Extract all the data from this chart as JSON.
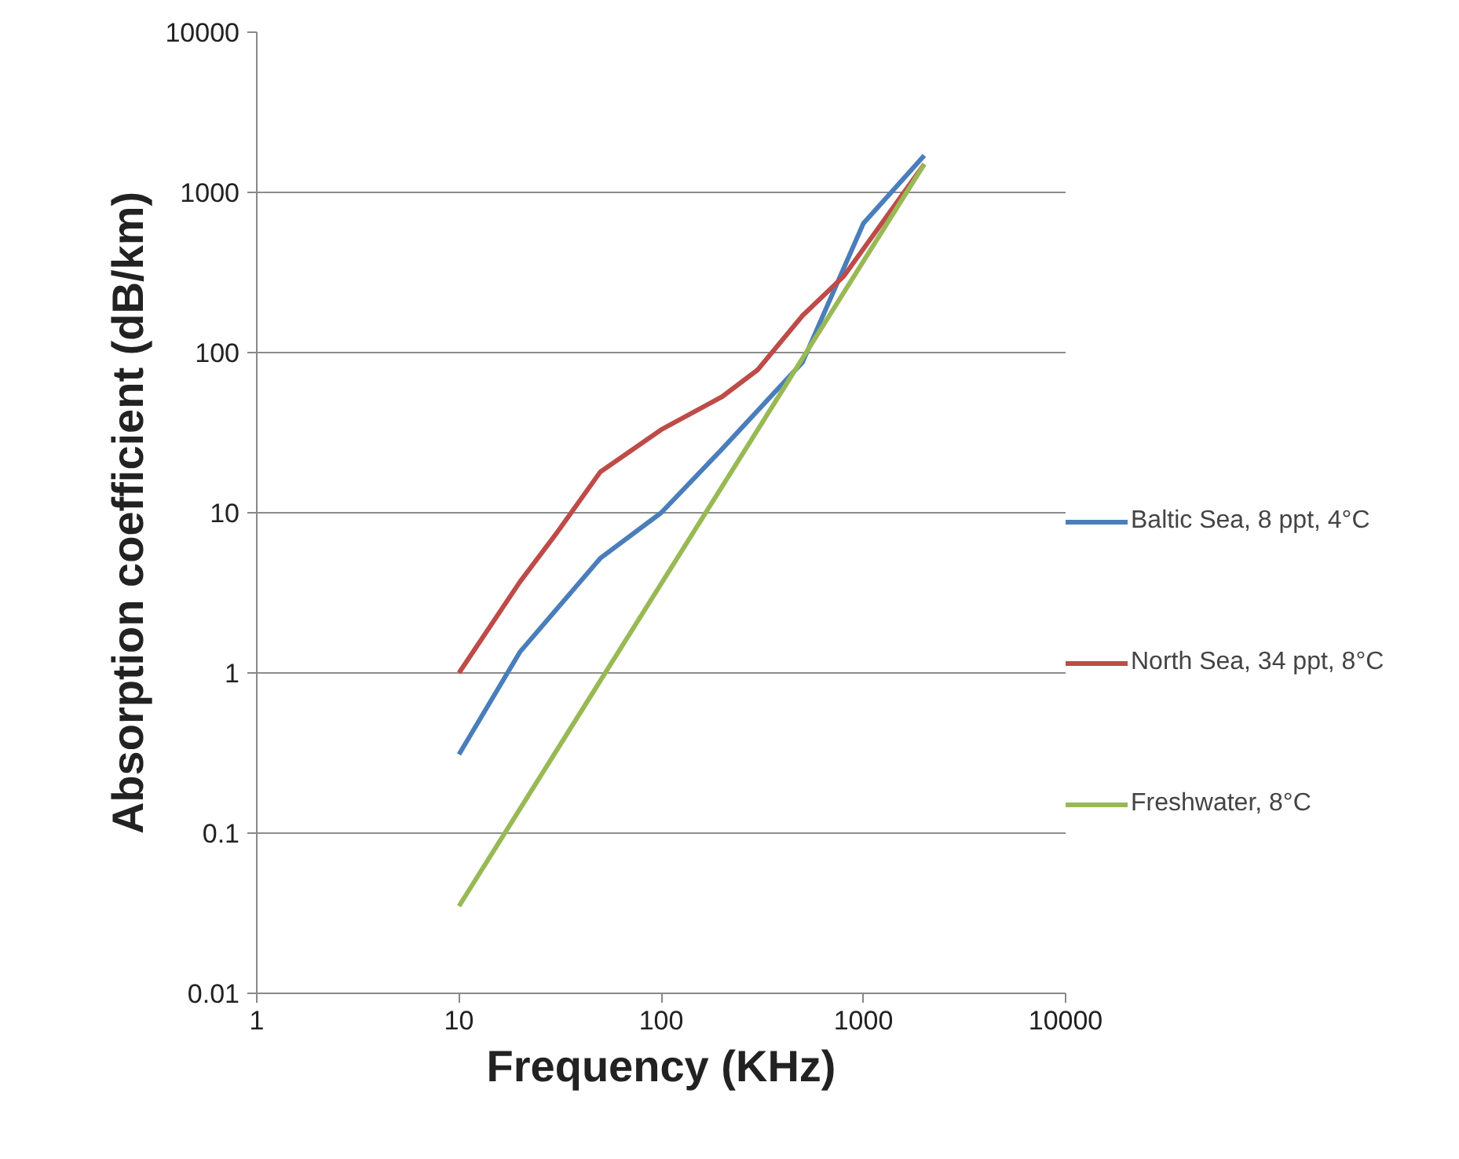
{
  "chart_data": {
    "type": "line",
    "xlabel": "Frequency (KHz)",
    "ylabel": "Absorption coefficient (dB/km)",
    "log": "xy",
    "xlim": [
      1,
      10000
    ],
    "ylim": [
      0.01,
      10000
    ],
    "xticks": [
      1,
      10,
      100,
      1000,
      10000
    ],
    "yticks": [
      0.01,
      0.1,
      1,
      10,
      100,
      1000,
      10000
    ],
    "grid": "y",
    "legend": "right",
    "line_style": "solid",
    "marker": "none",
    "series": [
      {
        "name": "Baltic Sea, 8 ppt, 4°C",
        "color": "#4a7ebb",
        "x": [
          10,
          20,
          50,
          100,
          200,
          500,
          1000,
          2000
        ],
        "values": [
          0.31,
          1.35,
          5.2,
          10,
          25,
          87,
          640,
          1700
        ]
      },
      {
        "name": "North Sea, 34 ppt, 8°C",
        "color": "#be4b48",
        "x": [
          10,
          20,
          30,
          50,
          100,
          200,
          300,
          500,
          800,
          2000
        ],
        "values": [
          1,
          3.7,
          7.3,
          18,
          33,
          53,
          78,
          170,
          300,
          1500
        ]
      },
      {
        "name": "Freshwater, 8°C",
        "color": "#98b954",
        "x": [
          10,
          2000
        ],
        "values": [
          0.035,
          1500
        ]
      }
    ]
  }
}
